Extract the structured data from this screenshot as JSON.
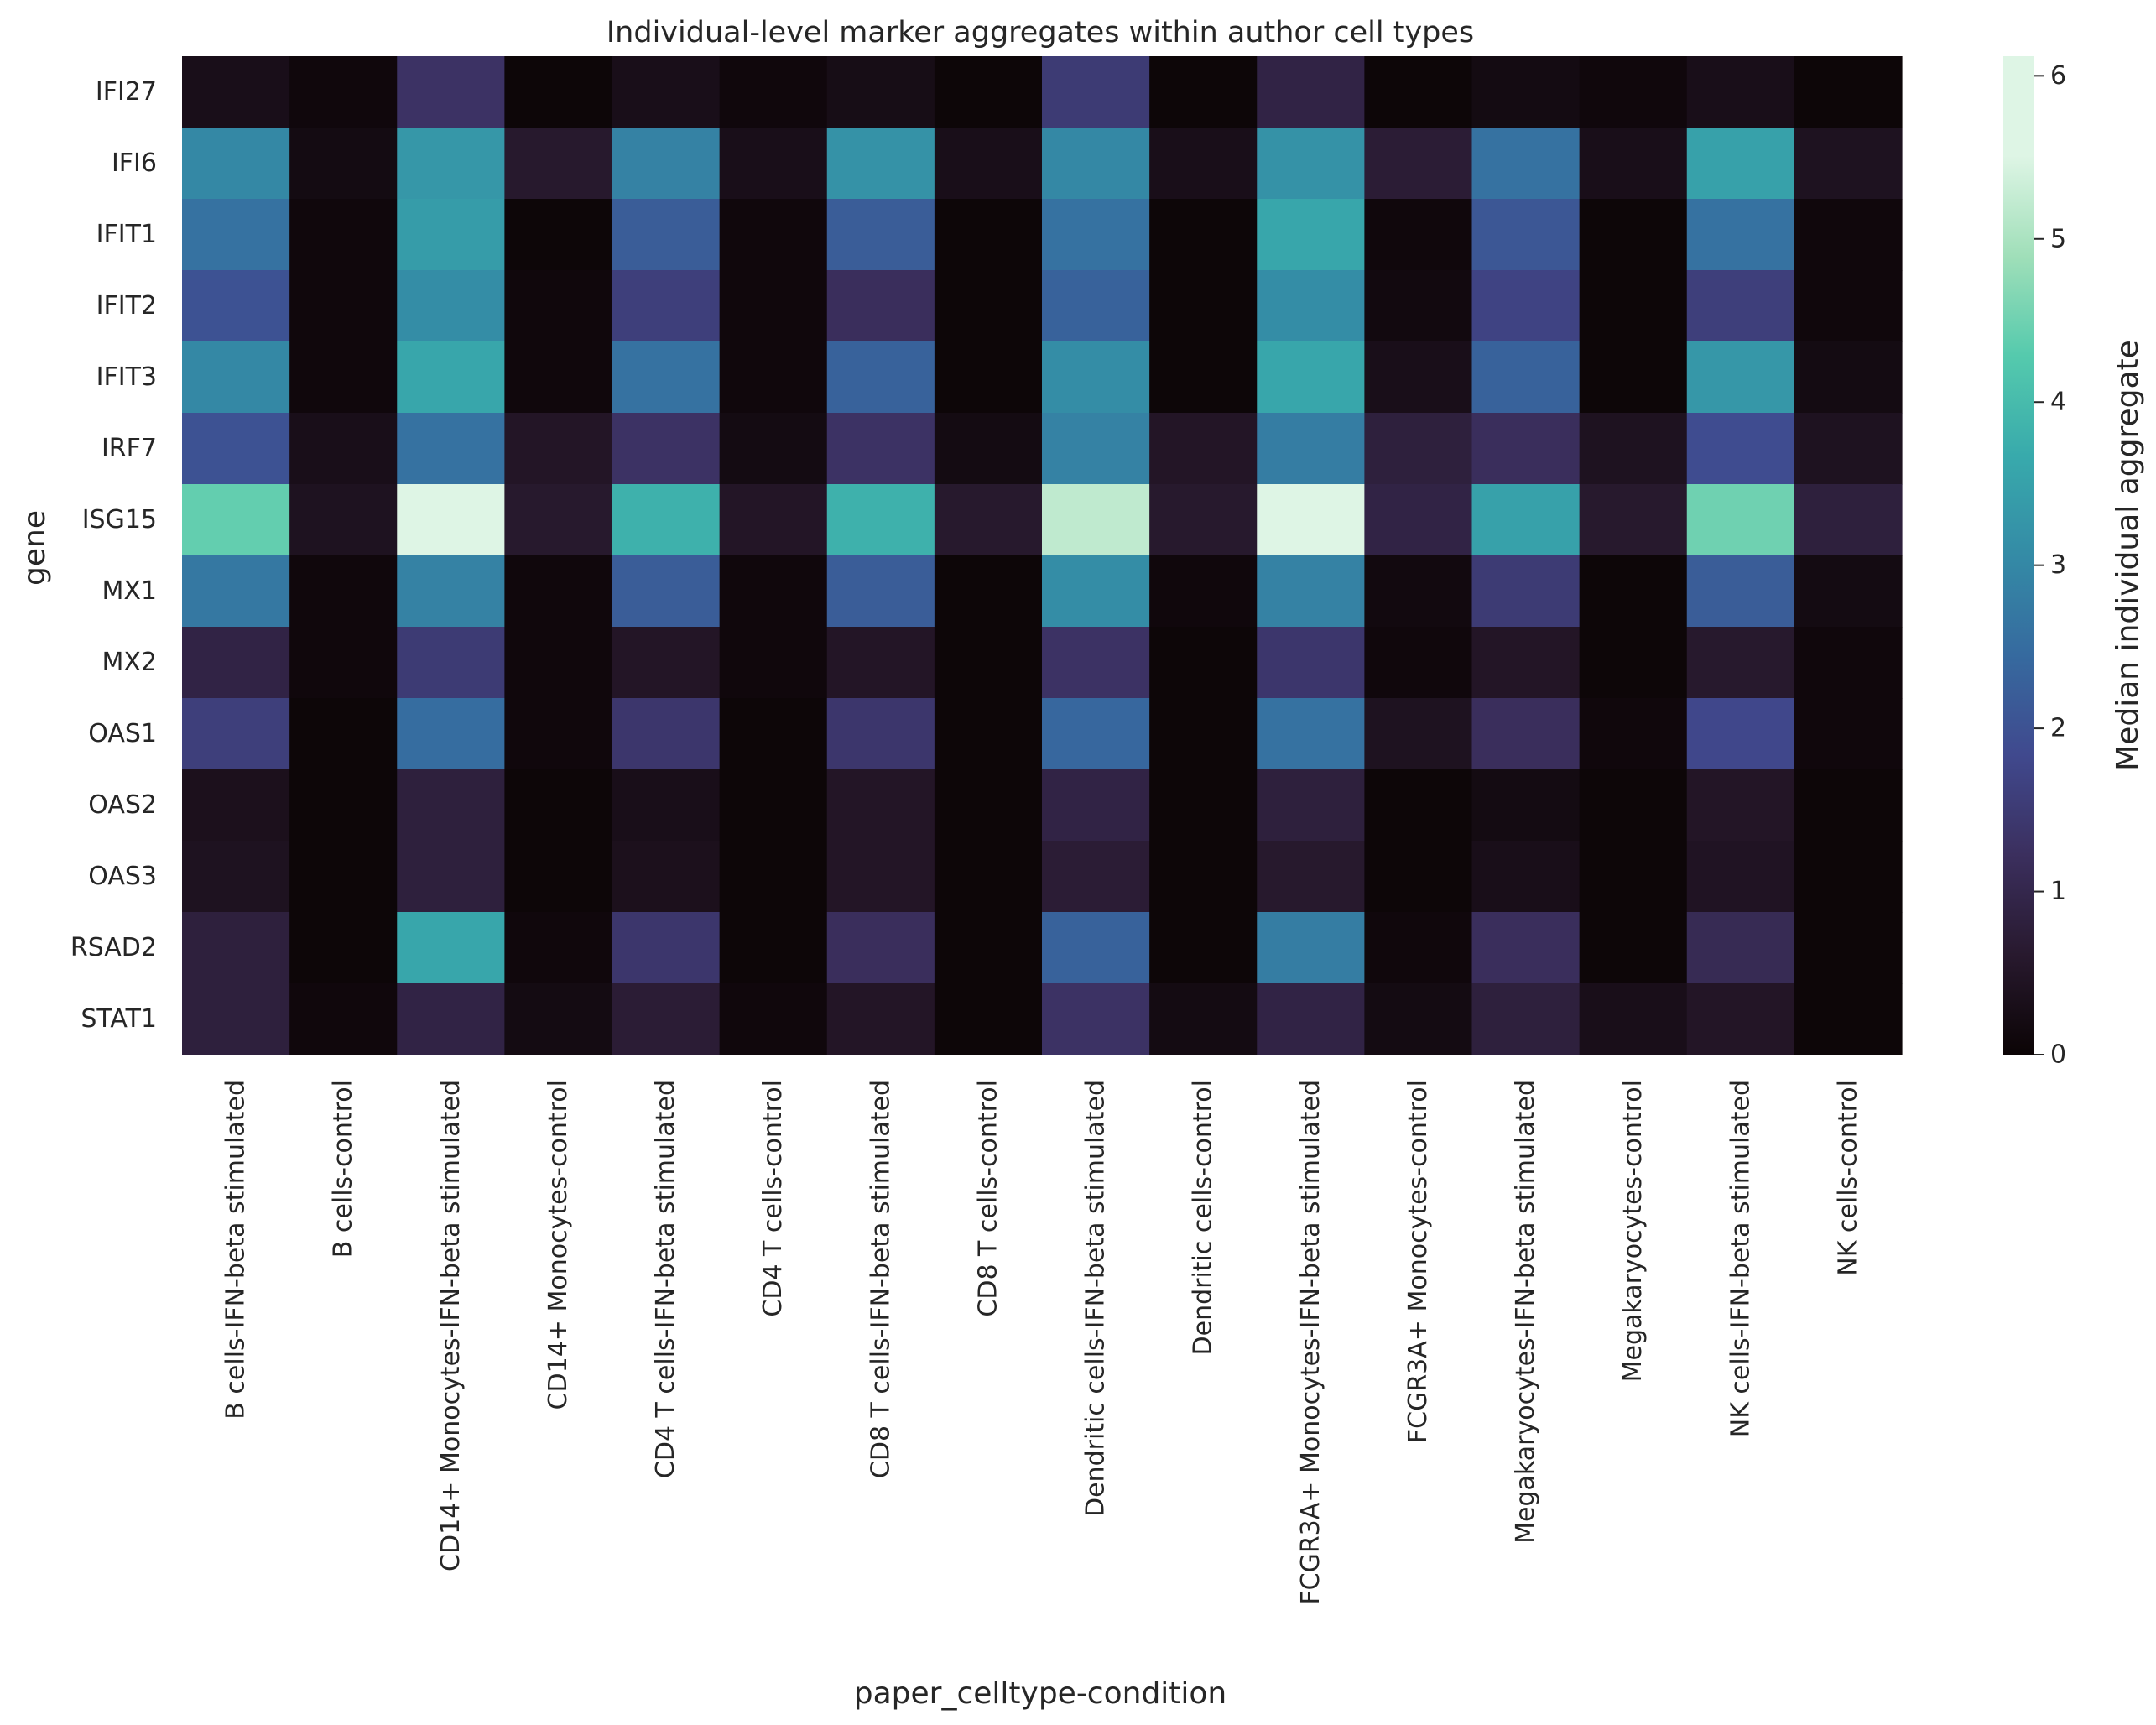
{
  "chart_data": {
    "type": "heatmap",
    "title": "Individual-level marker aggregates within author cell types",
    "xlabel": "paper_celltype-condition",
    "ylabel": "gene",
    "colorbar_label": "Median individual aggregate",
    "colorbar_ticks": [
      0,
      1,
      2,
      3,
      4,
      5,
      6
    ],
    "colorbar_range": [
      0,
      6.12
    ],
    "colormap": "mako",
    "rows": [
      "IFI27",
      "IFI6",
      "IFIT1",
      "IFIT2",
      "IFIT3",
      "IRF7",
      "ISG15",
      "MX1",
      "MX2",
      "OAS1",
      "OAS2",
      "OAS3",
      "RSAD2",
      "STAT1"
    ],
    "columns": [
      "B cells-IFN-beta stimulated",
      "B cells-control",
      "CD14+ Monocytes-IFN-beta stimulated",
      "CD14+ Monocytes-control",
      "CD4 T cells-IFN-beta stimulated",
      "CD4 T cells-control",
      "CD8 T cells-IFN-beta stimulated",
      "CD8 T cells-control",
      "Dendritic cells-IFN-beta stimulated",
      "Dendritic cells-control",
      "FCGR3A+ Monocytes-IFN-beta stimulated",
      "FCGR3A+ Monocytes-control",
      "Megakaryocytes-IFN-beta stimulated",
      "Megakaryocytes-control",
      "NK cells-IFN-beta stimulated",
      "NK cells-control"
    ],
    "values": [
      [
        0.3,
        0.1,
        1.3,
        0.05,
        0.3,
        0.1,
        0.25,
        0.05,
        1.5,
        0.05,
        0.9,
        0.05,
        0.2,
        0.1,
        0.3,
        0.05
      ],
      [
        3.0,
        0.2,
        3.3,
        0.6,
        2.9,
        0.3,
        3.2,
        0.3,
        3.0,
        0.3,
        3.2,
        0.7,
        2.6,
        0.3,
        3.5,
        0.4
      ],
      [
        2.6,
        0.1,
        3.4,
        0.05,
        2.2,
        0.1,
        2.2,
        0.05,
        2.6,
        0.05,
        3.6,
        0.1,
        2.1,
        0.05,
        2.6,
        0.1
      ],
      [
        2.0,
        0.1,
        3.1,
        0.1,
        1.6,
        0.1,
        1.2,
        0.05,
        2.3,
        0.05,
        3.1,
        0.15,
        1.7,
        0.05,
        1.6,
        0.1
      ],
      [
        3.0,
        0.1,
        3.6,
        0.1,
        2.6,
        0.1,
        2.3,
        0.05,
        3.1,
        0.05,
        3.6,
        0.3,
        2.3,
        0.05,
        3.3,
        0.2
      ],
      [
        2.0,
        0.3,
        2.6,
        0.5,
        1.3,
        0.2,
        1.3,
        0.2,
        2.9,
        0.5,
        2.8,
        0.8,
        1.2,
        0.4,
        1.9,
        0.4
      ],
      [
        4.4,
        0.4,
        6.1,
        0.6,
        3.8,
        0.5,
        3.8,
        0.6,
        5.2,
        0.6,
        5.6,
        0.9,
        3.5,
        0.6,
        4.5,
        0.8
      ],
      [
        2.7,
        0.1,
        2.9,
        0.1,
        2.2,
        0.1,
        2.2,
        0.05,
        3.1,
        0.1,
        2.9,
        0.15,
        1.5,
        0.05,
        2.2,
        0.2
      ],
      [
        0.9,
        0.1,
        1.5,
        0.1,
        0.5,
        0.1,
        0.5,
        0.05,
        1.3,
        0.05,
        1.4,
        0.1,
        0.5,
        0.05,
        0.6,
        0.1
      ],
      [
        1.6,
        0.05,
        2.5,
        0.1,
        1.4,
        0.05,
        1.4,
        0.05,
        2.4,
        0.05,
        2.6,
        0.4,
        1.2,
        0.1,
        1.8,
        0.1
      ],
      [
        0.35,
        0.05,
        0.8,
        0.05,
        0.3,
        0.05,
        0.5,
        0.05,
        0.9,
        0.05,
        0.8,
        0.05,
        0.2,
        0.05,
        0.5,
        0.05
      ],
      [
        0.4,
        0.05,
        0.8,
        0.05,
        0.35,
        0.05,
        0.5,
        0.05,
        0.7,
        0.05,
        0.6,
        0.05,
        0.3,
        0.05,
        0.45,
        0.05
      ],
      [
        0.8,
        0.05,
        3.6,
        0.1,
        1.4,
        0.05,
        1.2,
        0.05,
        2.3,
        0.05,
        2.8,
        0.1,
        1.2,
        0.05,
        1.1,
        0.05
      ],
      [
        0.8,
        0.1,
        0.9,
        0.2,
        0.7,
        0.1,
        0.5,
        0.05,
        1.3,
        0.2,
        0.9,
        0.2,
        0.8,
        0.3,
        0.5,
        0.05
      ]
    ]
  }
}
